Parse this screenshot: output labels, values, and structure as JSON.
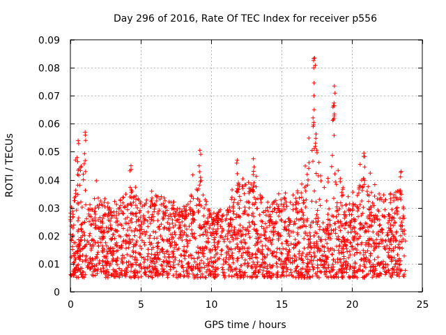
{
  "chart_data": {
    "type": "scatter",
    "title": "Day 296 of 2016, Rate Of TEC Index for receiver p556",
    "xlabel": "GPS time / hours",
    "ylabel": "ROTI / TECUs",
    "xlim": [
      0,
      25
    ],
    "ylim": [
      0,
      0.09
    ],
    "x_ticks": [
      0,
      5,
      10,
      15,
      20,
      25
    ],
    "x_tick_labels": [
      "0",
      "5",
      "10",
      "15",
      "20",
      "25"
    ],
    "y_ticks": [
      0,
      0.01,
      0.02,
      0.03,
      0.04,
      0.05,
      0.06,
      0.07,
      0.08,
      0.09
    ],
    "y_tick_labels": [
      "0",
      "0.01",
      "0.02",
      "0.03",
      "0.04",
      "0.05",
      "0.06",
      "0.07",
      "0.08",
      "0.09"
    ],
    "grid": true,
    "marker": "+",
    "color": "#ff0000",
    "series": [
      {
        "name": "ROTI",
        "data_range_hours": [
          0,
          23.8
        ],
        "typical_range": [
          0.005,
          0.025
        ],
        "envelope": [
          [
            0.0,
            0.03
          ],
          [
            0.5,
            0.055
          ],
          [
            1.0,
            0.057
          ],
          [
            1.5,
            0.04
          ],
          [
            2.0,
            0.041
          ],
          [
            3.0,
            0.034
          ],
          [
            4.0,
            0.04
          ],
          [
            4.3,
            0.045
          ],
          [
            5.0,
            0.035
          ],
          [
            6.0,
            0.04
          ],
          [
            7.0,
            0.038
          ],
          [
            8.0,
            0.033
          ],
          [
            9.2,
            0.05
          ],
          [
            10.0,
            0.032
          ],
          [
            11.0,
            0.03
          ],
          [
            12.0,
            0.047
          ],
          [
            13.0,
            0.047
          ],
          [
            14.0,
            0.036
          ],
          [
            15.0,
            0.04
          ],
          [
            16.0,
            0.043
          ],
          [
            16.5,
            0.041
          ],
          [
            17.3,
            0.083
          ],
          [
            17.8,
            0.052
          ],
          [
            18.7,
            0.073
          ],
          [
            19.5,
            0.038
          ],
          [
            20.0,
            0.041
          ],
          [
            20.8,
            0.049
          ],
          [
            21.5,
            0.042
          ],
          [
            22.5,
            0.04
          ],
          [
            23.5,
            0.043
          ],
          [
            23.8,
            0.025
          ]
        ],
        "peaks": [
          {
            "x": 17.35,
            "y": 0.0835
          },
          {
            "x": 18.75,
            "y": 0.0735
          },
          {
            "x": 18.7,
            "y": 0.0665
          },
          {
            "x": 17.3,
            "y": 0.07
          },
          {
            "x": 1.05,
            "y": 0.057
          },
          {
            "x": 0.55,
            "y": 0.054
          },
          {
            "x": 9.2,
            "y": 0.0505
          },
          {
            "x": 20.85,
            "y": 0.0495
          },
          {
            "x": 13.0,
            "y": 0.0475
          },
          {
            "x": 11.85,
            "y": 0.047
          },
          {
            "x": 4.3,
            "y": 0.045
          },
          {
            "x": 23.5,
            "y": 0.043
          }
        ]
      }
    ]
  }
}
